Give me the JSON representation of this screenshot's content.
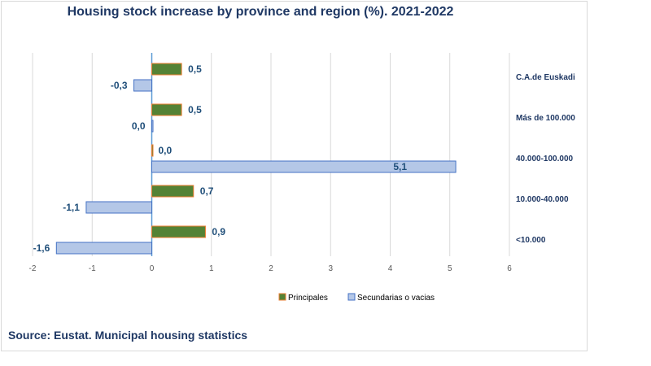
{
  "chart_data": {
    "type": "bar",
    "orientation": "horizontal",
    "title": "Housing stock increase by province and region (%). 2021-2022",
    "categories": [
      "C.A.de Euskadi",
      "Más de 100.000",
      "40.000-100.000",
      "10.000-40.000",
      "<10.000"
    ],
    "series": [
      {
        "name": "Principales",
        "color": "#548235",
        "border": "#ed7d31",
        "values": [
          0.5,
          0.5,
          0.0,
          0.7,
          0.9
        ],
        "labels": [
          "0,5",
          "0,5",
          "0,0",
          "0,7",
          "0,9"
        ]
      },
      {
        "name": "Secundarias o vacias",
        "color": "#b4c7e7",
        "border": "#4472c4",
        "values": [
          -0.3,
          0.0,
          5.1,
          -1.1,
          -1.6
        ],
        "labels": [
          "-0,3",
          "0,0",
          "5,1",
          "-1,1",
          "-1,6"
        ]
      }
    ],
    "xlim": [
      -2,
      6
    ],
    "xticks": [
      -2,
      -1,
      0,
      1,
      2,
      3,
      4,
      5,
      6
    ],
    "grid": true,
    "legend": "bottom"
  },
  "source": "Source: Eustat. Municipal housing statistics"
}
